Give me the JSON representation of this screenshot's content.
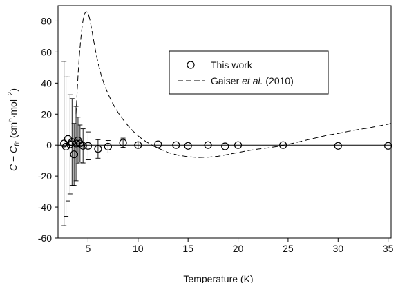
{
  "chart_data": {
    "type": "scatter",
    "xlabel": "Temperature (K)",
    "ylabel": {
      "C1": "C",
      "dash": " − ",
      "C2": "C",
      "sub": "fit",
      "units_open": "  (cm",
      "sup1": "6",
      "mid": "·mol",
      "sup2": "−2",
      "units_close": ")"
    },
    "xlim": [
      2,
      35.3
    ],
    "ylim": [
      -60,
      90
    ],
    "xticks": [
      5,
      10,
      15,
      20,
      25,
      30,
      35
    ],
    "yticks": [
      -60,
      -40,
      -20,
      0,
      20,
      40,
      60,
      80
    ],
    "grid": false,
    "legend_position": "upper-center",
    "series": [
      {
        "name": "This work",
        "kind": "scatter-errorbar",
        "marker": "open-circle",
        "color": "#000000",
        "points": [
          {
            "x": 2.6,
            "y": 1.0,
            "err": 53
          },
          {
            "x": 2.8,
            "y": -1.0,
            "err": 45
          },
          {
            "x": 3.0,
            "y": 4.0,
            "err": 40
          },
          {
            "x": 3.2,
            "y": 0.5,
            "err": 32
          },
          {
            "x": 3.4,
            "y": 2.0,
            "err": 28
          },
          {
            "x": 3.6,
            "y": -6.0,
            "err": 20
          },
          {
            "x": 3.8,
            "y": 1.0,
            "err": 24
          },
          {
            "x": 4.0,
            "y": 3.0,
            "err": 15
          },
          {
            "x": 4.2,
            "y": 1.0,
            "err": 12
          },
          {
            "x": 4.5,
            "y": -0.5,
            "err": 11
          },
          {
            "x": 5.0,
            "y": -0.5,
            "err": 9
          },
          {
            "x": 6.0,
            "y": -2.5,
            "err": 6
          },
          {
            "x": 7.0,
            "y": -1.0,
            "err": 4
          },
          {
            "x": 8.5,
            "y": 1.5,
            "err": 3
          },
          {
            "x": 10.0,
            "y": 0.0,
            "err": 2
          },
          {
            "x": 12.0,
            "y": 0.5,
            "err": 1
          },
          {
            "x": 13.8,
            "y": 0.0,
            "err": 1
          },
          {
            "x": 15.0,
            "y": -0.5,
            "err": 1
          },
          {
            "x": 17.0,
            "y": 0.0,
            "err": 1
          },
          {
            "x": 18.7,
            "y": -0.8,
            "err": 1
          },
          {
            "x": 20.0,
            "y": 0.0,
            "err": 1
          },
          {
            "x": 24.5,
            "y": 0.0,
            "err": 1
          },
          {
            "x": 30.0,
            "y": -0.5,
            "err": 1
          },
          {
            "x": 35.0,
            "y": -0.5,
            "err": 1
          }
        ]
      },
      {
        "name_author": "Gaiser ",
        "name_etal": "et al.",
        "name_year": " (2010)",
        "kind": "line",
        "style": "dashed",
        "color": "#000000",
        "x": [
          3.8,
          3.9,
          4.0,
          4.1,
          4.2,
          4.3,
          4.4,
          4.5,
          4.6,
          4.7,
          4.8,
          4.9,
          5.0,
          5.1,
          5.2,
          5.4,
          5.6,
          5.8,
          6.0,
          6.3,
          6.6,
          7.0,
          7.5,
          8.0,
          8.5,
          9.0,
          9.5,
          10.0,
          10.5,
          11.0,
          11.5,
          12.0,
          13.0,
          14.0,
          15.0,
          16.0,
          17.0,
          18.0,
          19.0,
          20.0,
          21.0,
          22.0,
          23.0,
          24.0,
          24.6,
          25.0,
          26.0,
          27.0,
          28.0,
          29.0,
          30.0,
          31.0,
          32.0,
          33.0,
          34.0,
          35.0,
          35.3
        ],
        "y": [
          20,
          33,
          45,
          55,
          63,
          70,
          76,
          80.5,
          83.5,
          85.2,
          86,
          85.8,
          85,
          83,
          80.5,
          73.5,
          66,
          59,
          53,
          45.5,
          39.5,
          33,
          26.5,
          21,
          16.5,
          12.5,
          9,
          6,
          3.5,
          1.5,
          -0.5,
          -2,
          -4.8,
          -6.5,
          -7.5,
          -8,
          -7.8,
          -7.2,
          -6,
          -4.8,
          -3.6,
          -2.6,
          -1.8,
          -0.8,
          0,
          0.5,
          2,
          3.5,
          5,
          6.5,
          7.5,
          8.8,
          10,
          11,
          12.3,
          13.5,
          14
        ]
      }
    ]
  }
}
